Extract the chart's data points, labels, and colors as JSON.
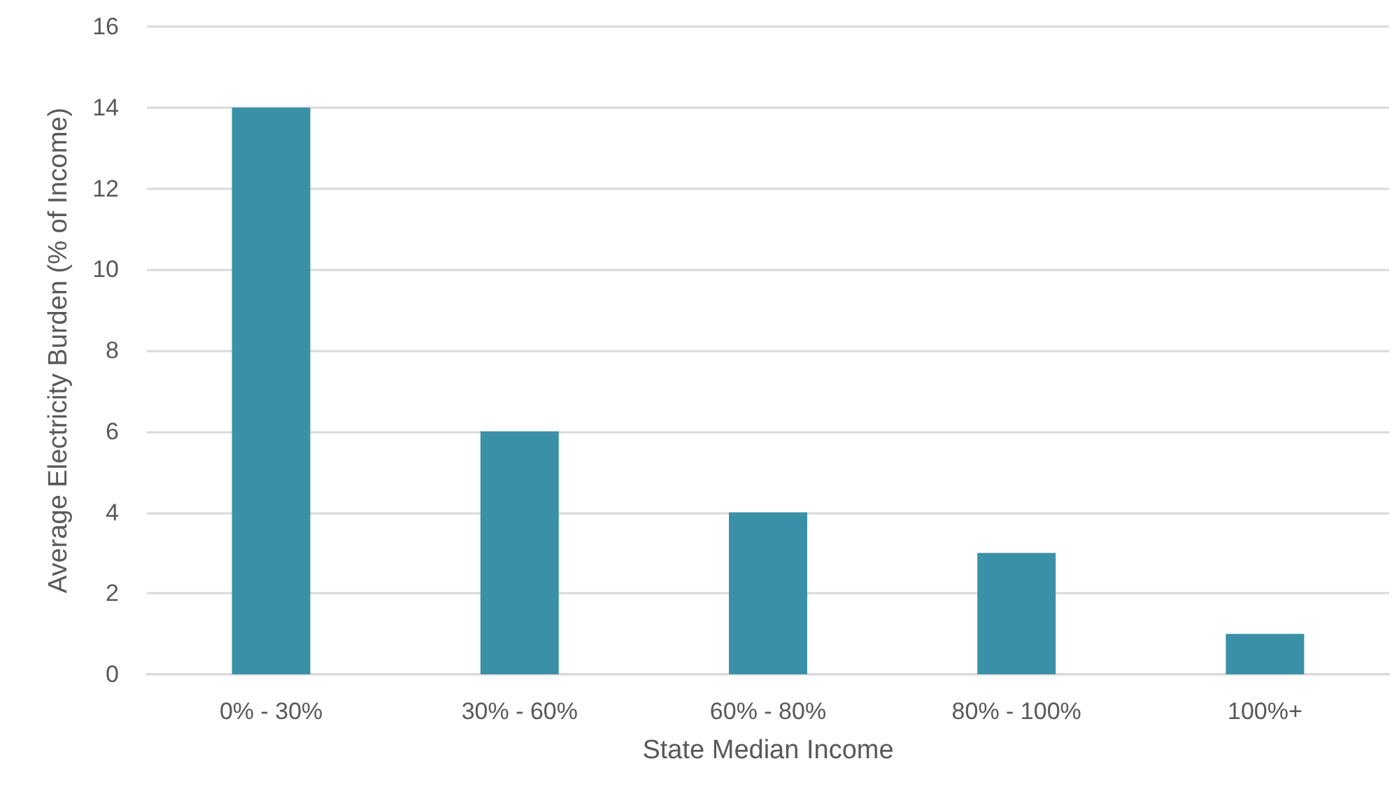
{
  "chart_data": {
    "type": "bar",
    "xlabel": "State Median Income",
    "ylabel": "Average Electricity Burden (% of Income)",
    "categories": [
      "0% - 30%",
      "30% - 60%",
      "60% - 80%",
      "80% - 100%",
      "100%+"
    ],
    "values": [
      14,
      6,
      4,
      3,
      1
    ],
    "color": "#3a91a7",
    "ylim": [
      0,
      16
    ],
    "yticks": [
      0,
      2,
      4,
      6,
      8,
      10,
      12,
      14,
      16
    ],
    "grid": "y"
  }
}
